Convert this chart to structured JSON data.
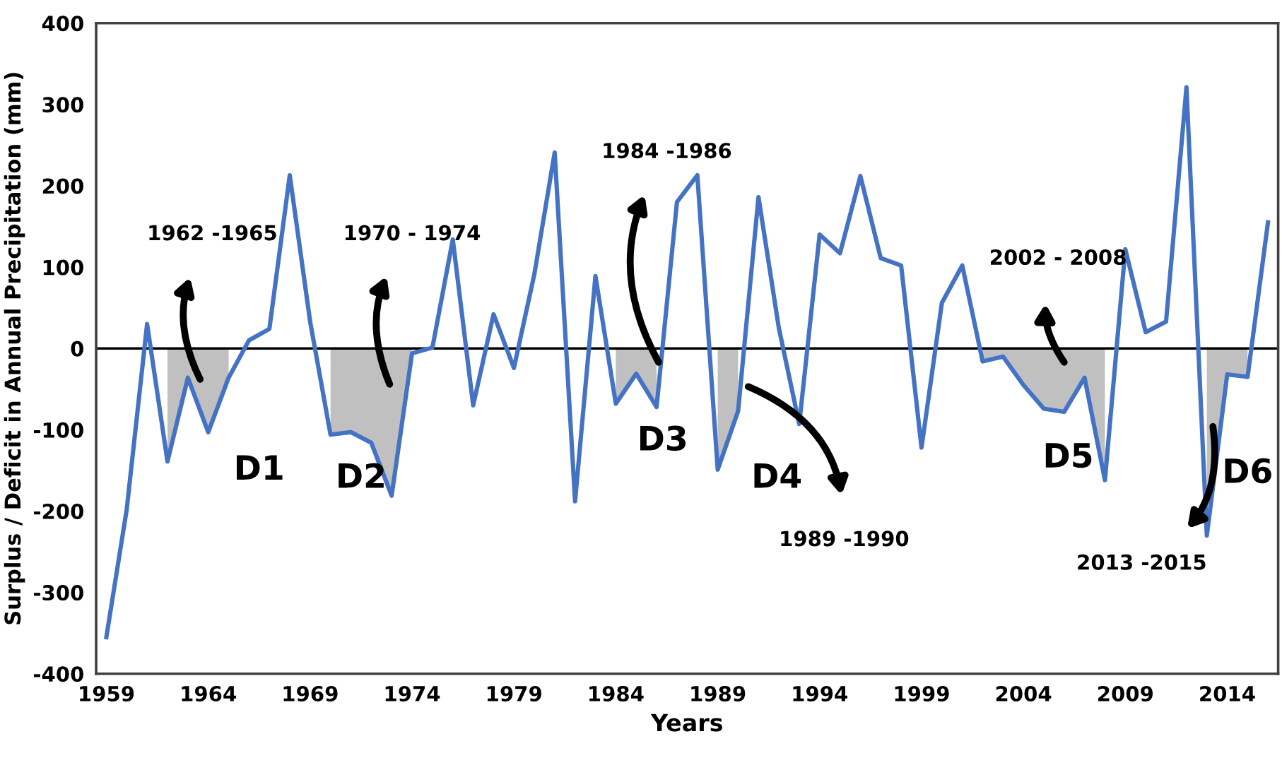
{
  "chart_data": {
    "type": "line",
    "xlabel": "Years",
    "ylabel": "Surplus / Deficit in Annual Precipitation (mm)",
    "x": [
      1959,
      1960,
      1961,
      1962,
      1963,
      1964,
      1965,
      1966,
      1967,
      1968,
      1969,
      1970,
      1971,
      1972,
      1973,
      1974,
      1975,
      1976,
      1977,
      1978,
      1979,
      1980,
      1981,
      1982,
      1983,
      1984,
      1985,
      1986,
      1987,
      1988,
      1989,
      1990,
      1991,
      1992,
      1993,
      1994,
      1995,
      1996,
      1997,
      1998,
      1999,
      2000,
      2001,
      2002,
      2003,
      2004,
      2005,
      2006,
      2007,
      2008,
      2009,
      2010,
      2011,
      2012,
      2013,
      2014,
      2015,
      2016
    ],
    "series": [
      {
        "color": "#4472c4",
        "values": [
          -355,
          -198,
          30,
          -139,
          -36,
          -103,
          -36,
          10,
          24,
          213,
          33,
          -106,
          -103,
          -116,
          -181,
          -6,
          1,
          134,
          -70,
          42,
          -24,
          91,
          241,
          -188,
          89,
          -68,
          -31,
          -72,
          180,
          213,
          -149,
          -77,
          186,
          25,
          -93,
          140,
          117,
          212,
          111,
          102,
          -122,
          56,
          102,
          -16,
          -10,
          -45,
          -74,
          -78,
          -36,
          -162,
          122,
          20,
          33,
          321,
          -230,
          -32,
          -35,
          155
        ]
      },
      {
        "type": "area",
        "color": "#c0c0c0",
        "x": [
          1962,
          1963,
          1964,
          1965
        ],
        "values": [
          -139,
          -36,
          -103,
          -36
        ]
      },
      {
        "type": "area",
        "color": "#c0c0c0",
        "x": [
          1970,
          1971,
          1972,
          1973,
          1974
        ],
        "values": [
          -106,
          -103,
          -116,
          -181,
          -6
        ]
      },
      {
        "type": "area",
        "color": "#c0c0c0",
        "x": [
          1984,
          1985,
          1986
        ],
        "values": [
          -68,
          -31,
          -72
        ]
      },
      {
        "type": "area",
        "color": "#c0c0c0",
        "x": [
          1989,
          1990
        ],
        "values": [
          -149,
          -77
        ]
      },
      {
        "type": "area",
        "color": "#c0c0c0",
        "x": [
          2002,
          2003,
          2004,
          2005,
          2006,
          2007,
          2008
        ],
        "values": [
          -16,
          -10,
          -45,
          -74,
          -78,
          -36,
          -162
        ]
      },
      {
        "type": "area",
        "color": "#c0c0c0",
        "x": [
          2013,
          2014,
          2015
        ],
        "values": [
          -230,
          -32,
          -35
        ]
      }
    ],
    "xlim": [
      1958.5,
      2016.5
    ],
    "xticks": [
      1959,
      1964,
      1969,
      1974,
      1979,
      1984,
      1989,
      1994,
      1999,
      2004,
      2009,
      2014
    ],
    "ylim": [
      -400,
      400
    ],
    "yticks": [
      -400,
      -300,
      -200,
      -100,
      0,
      100,
      200,
      300,
      400
    ],
    "ref_lines": [
      {
        "axis": "y",
        "value": 0,
        "color": "#000000"
      }
    ],
    "annotations": [
      "D1",
      "D2",
      "D3",
      "D4",
      "D5",
      "D6",
      "1962 -1965",
      "1970 - 1974",
      "1984 -1986",
      "1989 -1990",
      "2002 - 2008",
      "2013 -2015"
    ],
    "grid": false,
    "legend": false,
    "marker": "none",
    "line_style": "solid"
  }
}
